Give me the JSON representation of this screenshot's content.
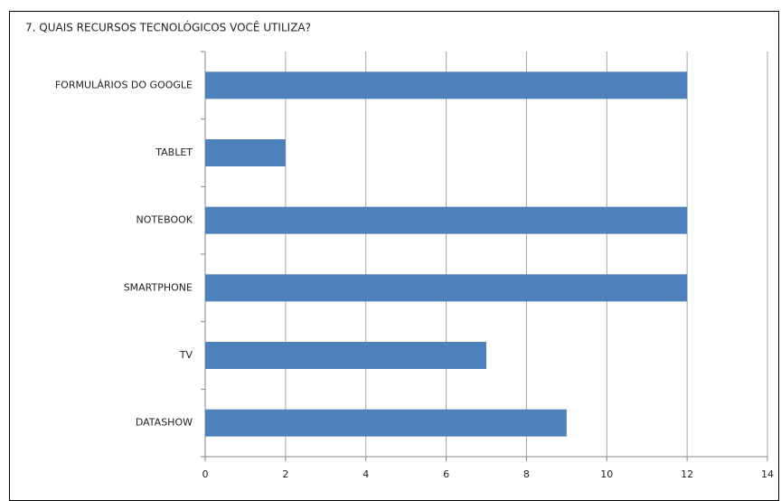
{
  "chart_data": {
    "type": "barh",
    "title": "7. QUAIS RECURSOS TECNOLÓGICOS VOCÊ UTILIZA?",
    "categories": [
      "FORMULÁRIOS DO GOOGLE",
      "TABLET",
      "NOTEBOOK",
      "SMARTPHONE",
      "TV",
      "DATASHOW"
    ],
    "values": [
      12,
      2,
      12,
      12,
      7,
      9
    ],
    "color": "#4f81bd",
    "xlim": [
      0,
      14
    ],
    "xticks": [
      0,
      2,
      4,
      6,
      8,
      10,
      12,
      14
    ],
    "grid": true
  }
}
